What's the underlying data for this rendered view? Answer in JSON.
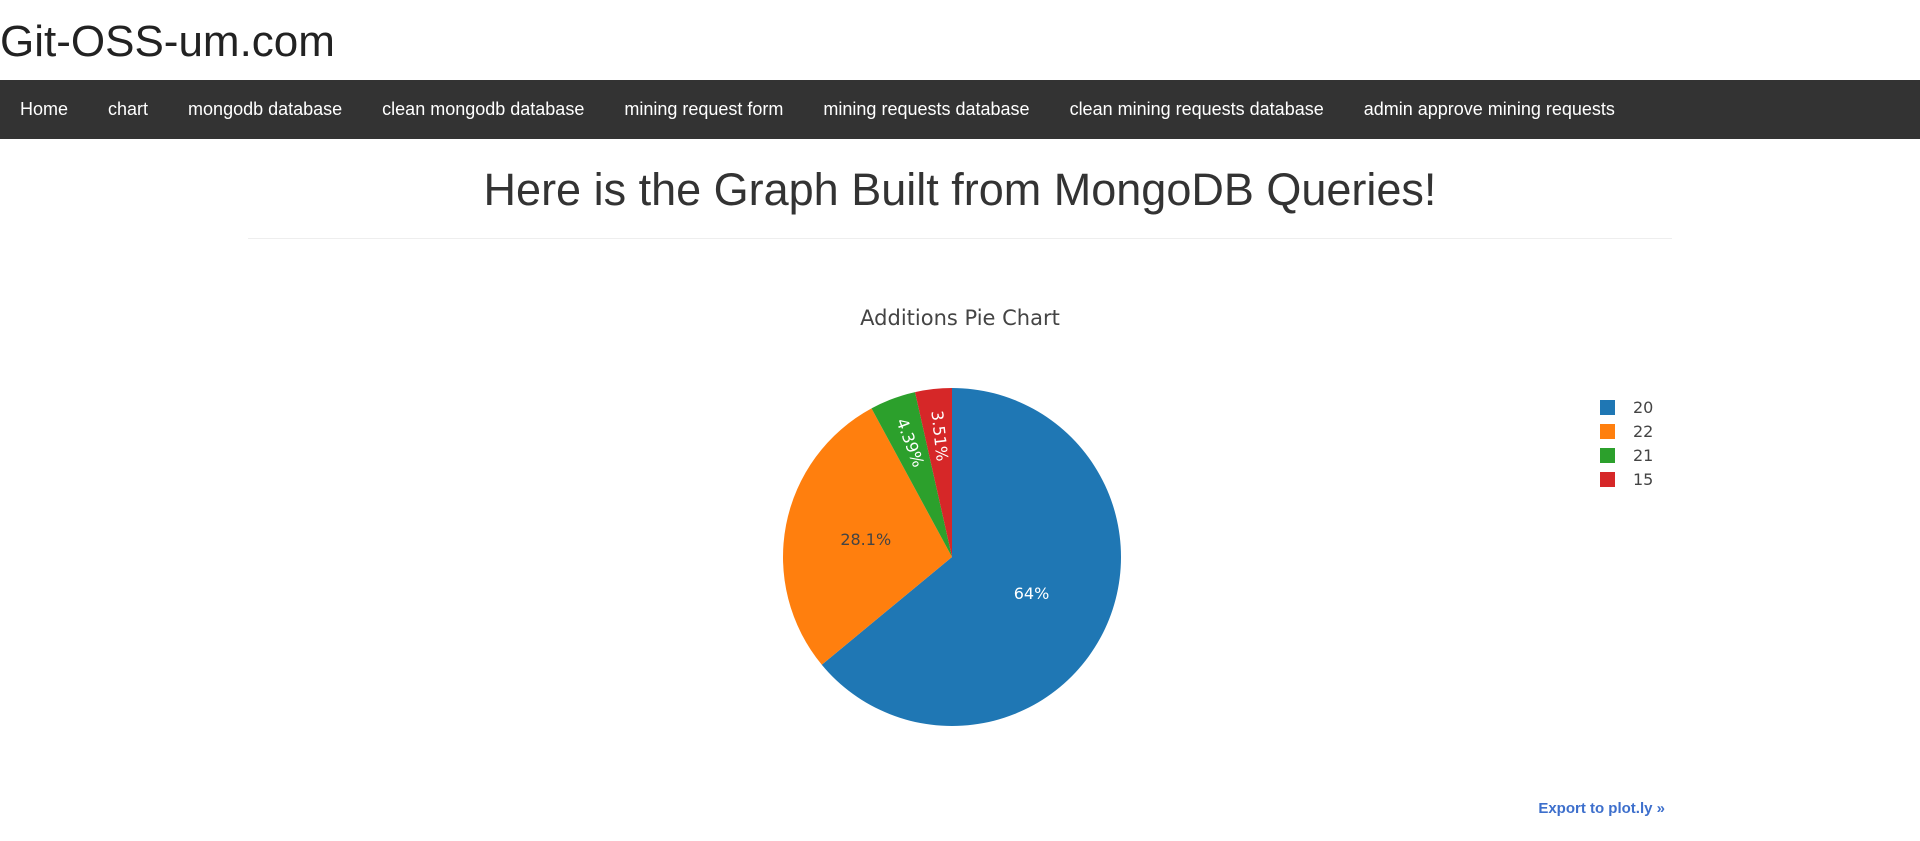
{
  "site": {
    "title": "Git-OSS-um.com"
  },
  "nav": {
    "items": [
      {
        "label": "Home"
      },
      {
        "label": "chart"
      },
      {
        "label": "mongodb database"
      },
      {
        "label": "clean mongodb database"
      },
      {
        "label": "mining request form"
      },
      {
        "label": "mining requests database"
      },
      {
        "label": "clean mining requests database"
      },
      {
        "label": "admin approve mining requests"
      }
    ]
  },
  "main": {
    "heading": "Here is the Graph Built from MongoDB Queries!",
    "export_label": "Export to plot.ly »"
  },
  "chart_data": {
    "type": "pie",
    "title": "Additions Pie Chart",
    "labels": [
      "20",
      "22",
      "21",
      "15"
    ],
    "values": [
      64,
      28.1,
      4.39,
      3.51
    ],
    "percent_labels": [
      "64%",
      "28.1%",
      "4.39%",
      "3.51%"
    ],
    "colors": [
      "#1f77b4",
      "#ff7f0e",
      "#2ca02c",
      "#d62728"
    ],
    "text_colors": [
      "#ffffff",
      "#444444",
      "#ffffff",
      "#ffffff"
    ],
    "legend_position": "top-right",
    "direction": "clockwise",
    "start": "top"
  }
}
